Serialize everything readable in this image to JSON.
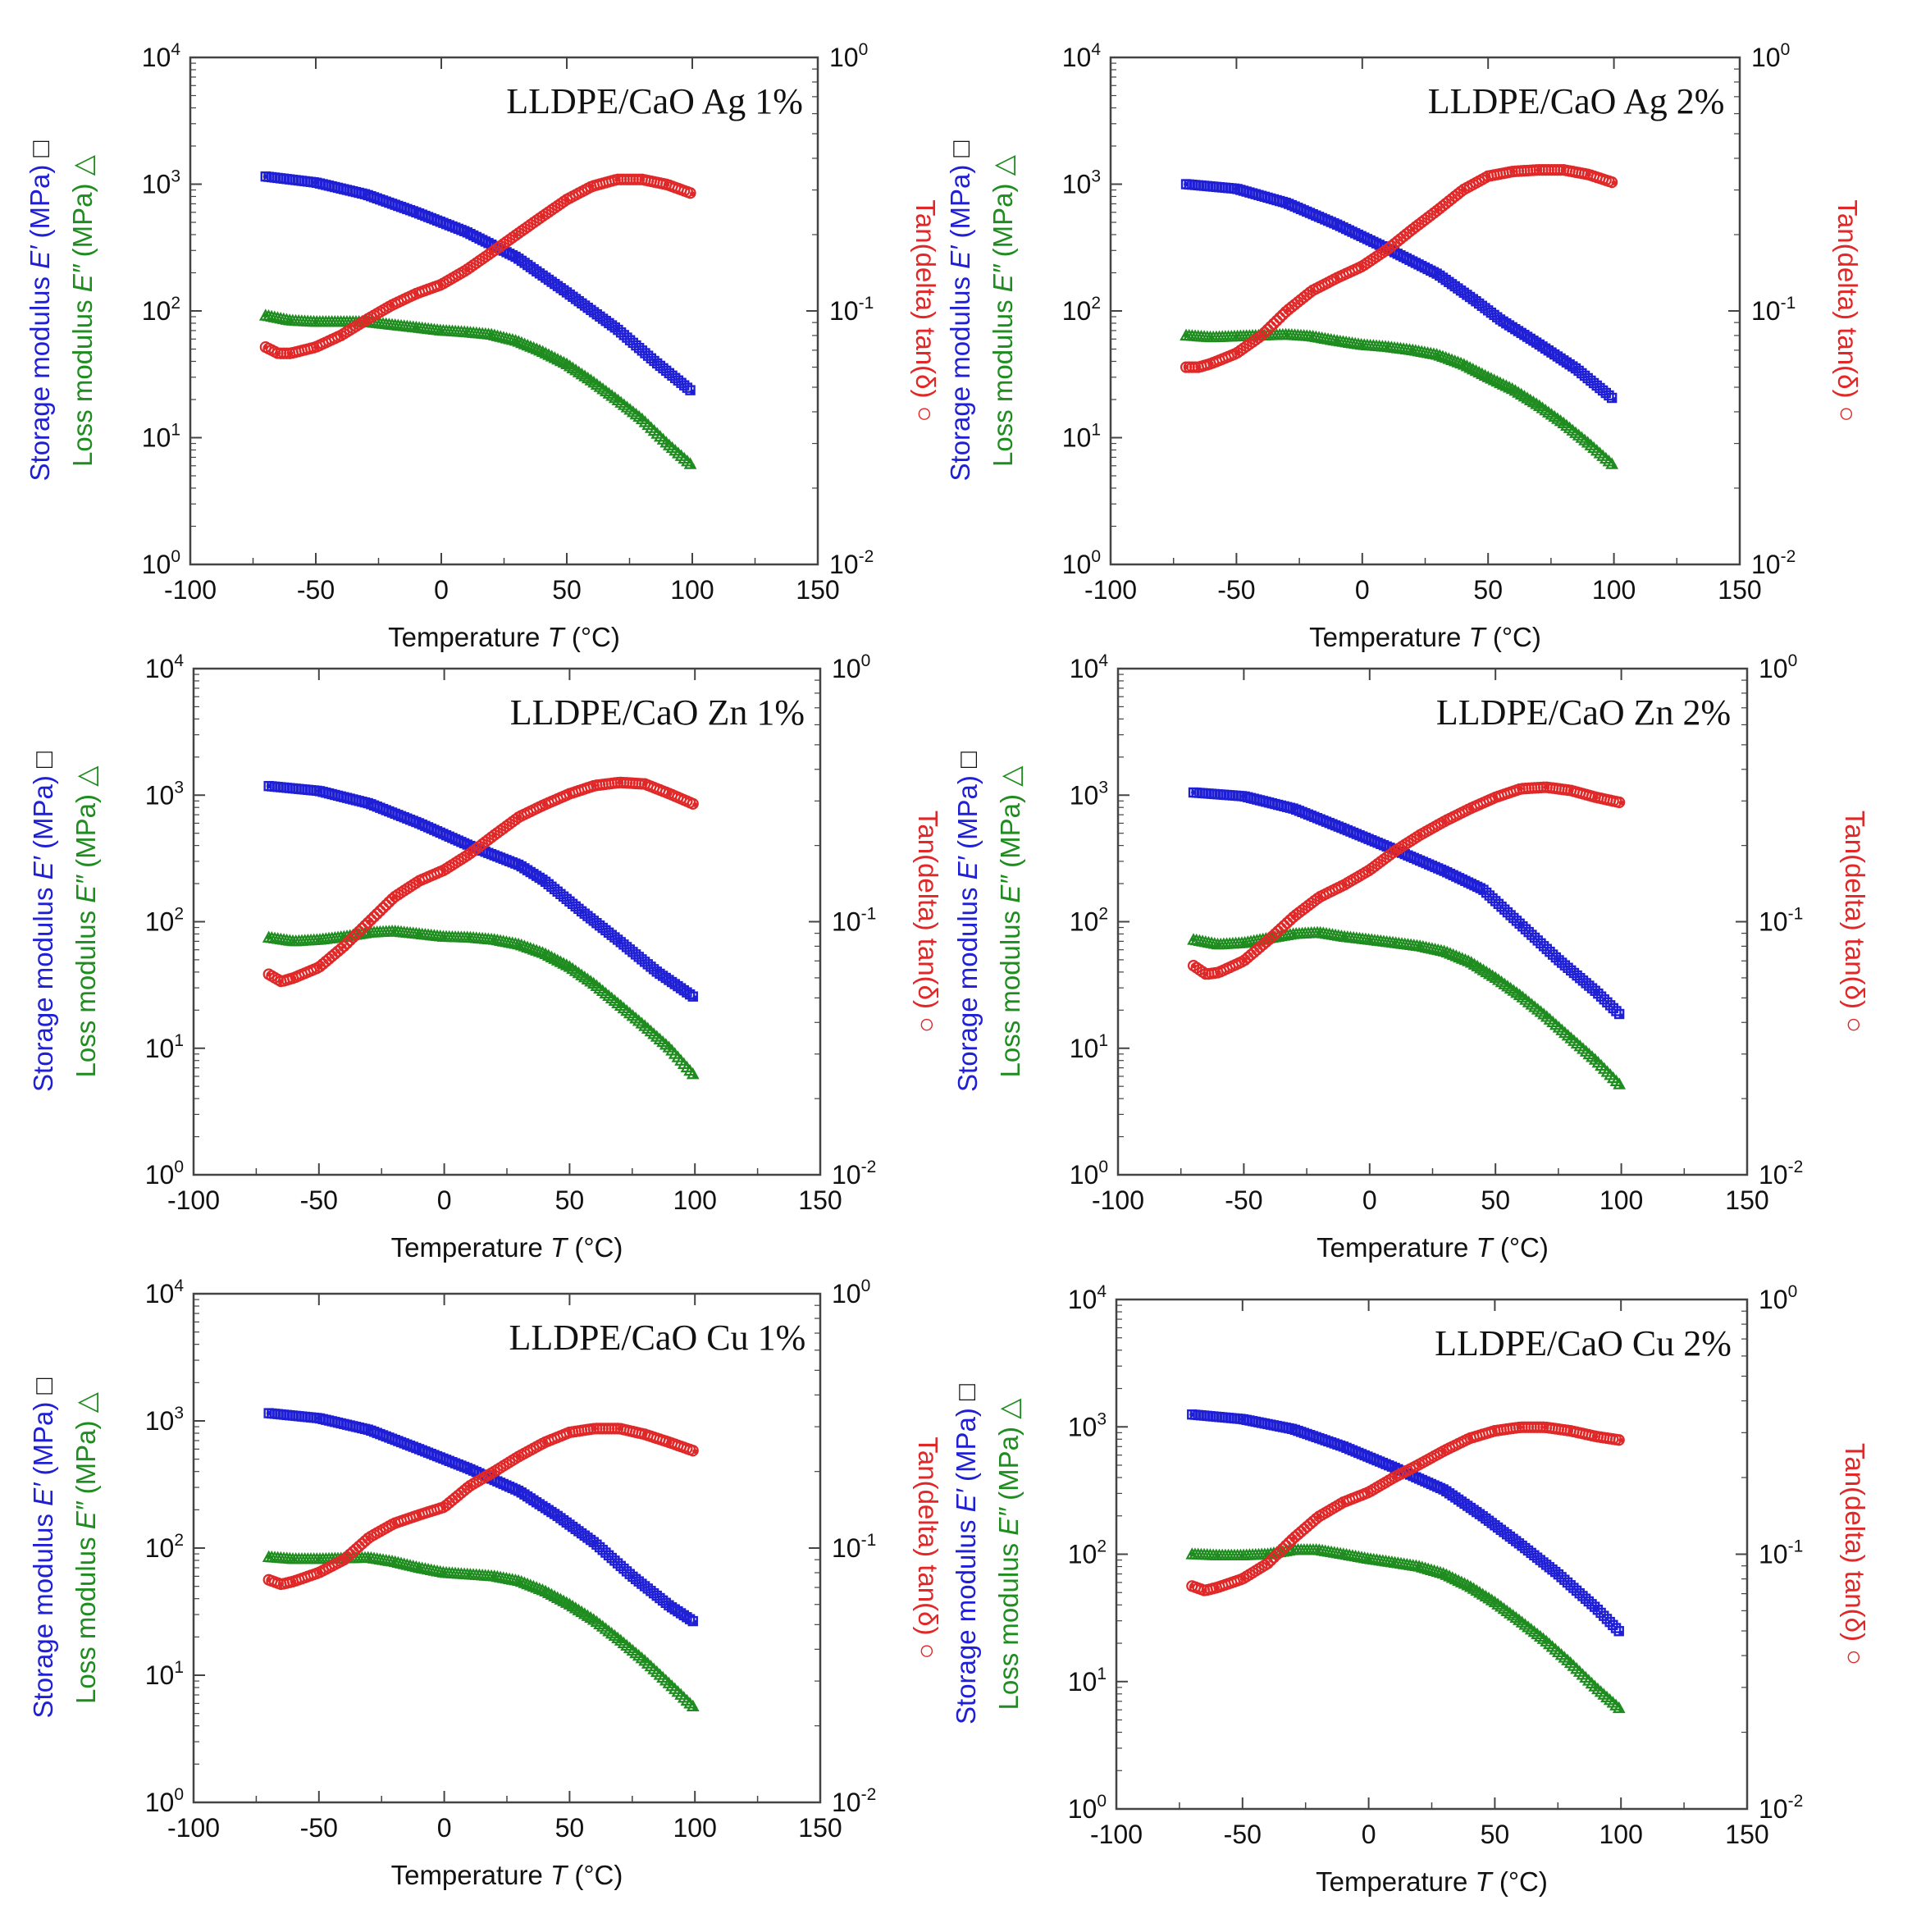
{
  "figure": {
    "colors": {
      "storage": "#1f1fd6",
      "loss": "#1e8c1e",
      "tan": "#e02828",
      "axis": "#444444",
      "text": "#111111"
    },
    "labels": {
      "xlabel_prefix": "Temperature ",
      "xlabel_var": "T",
      "xlabel_unit": " (°C)",
      "storage_prefix": "Storage modulus ",
      "storage_var": "E′",
      "storage_unit": " (MPa)",
      "storage_marker": "□",
      "loss_prefix": "Loss modulus ",
      "loss_var": "E″",
      "loss_unit": " (MPa)",
      "loss_marker": "△",
      "tan_text": "Tan(delta) tan(δ)",
      "tan_marker": "○",
      "ten": "10"
    }
  },
  "chart_data": [
    {
      "type": "line",
      "title": "LLDPE/CaO Ag 1%",
      "xlabel": "Temperature T (°C)",
      "ylabel_left": "Storage modulus E′ (MPa) □ / Loss modulus E″ (MPa) △",
      "ylabel_right": "Tan(delta) tan(δ) ○",
      "xlim": [
        -100,
        150
      ],
      "xticks": [
        -100,
        -50,
        0,
        50,
        100,
        150
      ],
      "ylim_left": [
        1,
        10000
      ],
      "yticks_left_exp": [
        0,
        1,
        2,
        3,
        4
      ],
      "ylim_right": [
        0.01,
        1
      ],
      "yticks_right_exp": [
        -2,
        -1,
        0
      ],
      "series": [
        {
          "name": "Storage modulus E′",
          "axis": "left",
          "x": [
            -70,
            -50,
            -30,
            -10,
            10,
            30,
            50,
            70,
            85,
            100
          ],
          "y": [
            1150,
            1030,
            830,
            600,
            420,
            265,
            140,
            72,
            40,
            23
          ]
        },
        {
          "name": "Loss modulus E″",
          "axis": "left",
          "x": [
            -70,
            -60,
            -50,
            -30,
            -10,
            0,
            10,
            20,
            30,
            40,
            50,
            60,
            70,
            80,
            90,
            100
          ],
          "y": [
            92,
            84,
            82,
            82,
            74,
            70,
            68,
            65,
            58,
            48,
            38,
            28,
            20,
            14,
            9,
            6
          ]
        },
        {
          "name": "tan δ",
          "axis": "right",
          "x": [
            -70,
            -65,
            -60,
            -50,
            -40,
            -30,
            -20,
            -10,
            0,
            10,
            20,
            30,
            40,
            50,
            60,
            70,
            80,
            90,
            100
          ],
          "y": [
            0.072,
            0.068,
            0.068,
            0.072,
            0.08,
            0.092,
            0.105,
            0.117,
            0.127,
            0.145,
            0.17,
            0.2,
            0.235,
            0.275,
            0.31,
            0.33,
            0.33,
            0.315,
            0.29
          ]
        }
      ]
    },
    {
      "type": "line",
      "title": "LLDPE/CaO Ag 2%",
      "xlabel": "Temperature T (°C)",
      "ylabel_left": "Storage modulus E′ (MPa) □ / Loss modulus E″ (MPa) △",
      "ylabel_right": "Tan(delta) tan(δ) ○",
      "xlim": [
        -100,
        150
      ],
      "xticks": [
        -100,
        -50,
        0,
        50,
        100,
        150
      ],
      "ylim_left": [
        1,
        10000
      ],
      "yticks_left_exp": [
        0,
        1,
        2,
        3,
        4
      ],
      "ylim_right": [
        0.01,
        1
      ],
      "yticks_right_exp": [
        -2,
        -1,
        0
      ],
      "series": [
        {
          "name": "Storage modulus E′",
          "axis": "left",
          "x": [
            -70,
            -50,
            -30,
            -10,
            10,
            30,
            45,
            55,
            70,
            85,
            100
          ],
          "y": [
            1000,
            920,
            710,
            480,
            310,
            195,
            120,
            85,
            55,
            35,
            20
          ]
        },
        {
          "name": "Loss modulus E″",
          "axis": "left",
          "x": [
            -70,
            -60,
            -50,
            -40,
            -30,
            -20,
            -10,
            0,
            10,
            20,
            30,
            40,
            50,
            60,
            70,
            80,
            90,
            100
          ],
          "y": [
            64,
            62,
            63,
            64,
            65,
            63,
            58,
            54,
            52,
            49,
            45,
            38,
            30,
            24,
            18,
            13,
            9,
            6
          ]
        },
        {
          "name": "tan δ",
          "axis": "right",
          "x": [
            -70,
            -65,
            -60,
            -50,
            -40,
            -30,
            -20,
            -10,
            0,
            10,
            20,
            30,
            40,
            50,
            60,
            70,
            80,
            90,
            100
          ],
          "y": [
            0.06,
            0.06,
            0.062,
            0.068,
            0.08,
            0.1,
            0.12,
            0.135,
            0.15,
            0.175,
            0.21,
            0.25,
            0.3,
            0.34,
            0.355,
            0.36,
            0.36,
            0.345,
            0.32
          ]
        }
      ]
    },
    {
      "type": "line",
      "title": "LLDPE/CaO Zn 1%",
      "xlabel": "Temperature T (°C)",
      "ylabel_left": "Storage modulus E′ (MPa) □ / Loss modulus E″ (MPa) △",
      "ylabel_right": "Tan(delta) tan(δ) ○",
      "xlim": [
        -100,
        150
      ],
      "xticks": [
        -100,
        -50,
        0,
        50,
        100,
        150
      ],
      "ylim_left": [
        1,
        10000
      ],
      "yticks_left_exp": [
        0,
        1,
        2,
        3,
        4
      ],
      "ylim_right": [
        0.01,
        1
      ],
      "yticks_right_exp": [
        -2,
        -1,
        0
      ],
      "series": [
        {
          "name": "Storage modulus E′",
          "axis": "left",
          "x": [
            -70,
            -50,
            -30,
            -10,
            10,
            30,
            40,
            55,
            70,
            85,
            100
          ],
          "y": [
            1180,
            1080,
            860,
            600,
            400,
            280,
            210,
            120,
            70,
            40,
            25
          ]
        },
        {
          "name": "Loss modulus E″",
          "axis": "left",
          "x": [
            -70,
            -60,
            -50,
            -40,
            -30,
            -20,
            -10,
            0,
            10,
            20,
            30,
            40,
            50,
            60,
            70,
            80,
            90,
            100
          ],
          "y": [
            75,
            70,
            72,
            76,
            82,
            84,
            80,
            76,
            75,
            72,
            66,
            56,
            44,
            32,
            22,
            15,
            10,
            6
          ]
        },
        {
          "name": "tan δ",
          "axis": "right",
          "x": [
            -70,
            -65,
            -60,
            -50,
            -40,
            -30,
            -20,
            -10,
            0,
            10,
            20,
            30,
            40,
            50,
            60,
            70,
            80,
            90,
            100
          ],
          "y": [
            0.062,
            0.058,
            0.06,
            0.066,
            0.08,
            0.1,
            0.125,
            0.145,
            0.16,
            0.185,
            0.22,
            0.26,
            0.29,
            0.32,
            0.345,
            0.355,
            0.35,
            0.32,
            0.29
          ]
        }
      ]
    },
    {
      "type": "line",
      "title": "LLDPE/CaO Zn 2%",
      "xlabel": "Temperature T (°C)",
      "ylabel_left": "Storage modulus E′ (MPa) □ / Loss modulus E″ (MPa) △",
      "ylabel_right": "Tan(delta) tan(δ) ○",
      "xlim": [
        -100,
        150
      ],
      "xticks": [
        -100,
        -50,
        0,
        50,
        100,
        150
      ],
      "ylim_left": [
        1,
        10000
      ],
      "yticks_left_exp": [
        0,
        1,
        2,
        3,
        4
      ],
      "ylim_right": [
        0.01,
        1
      ],
      "yticks_right_exp": [
        -2,
        -1,
        0
      ],
      "series": [
        {
          "name": "Storage modulus E′",
          "axis": "left",
          "x": [
            -70,
            -50,
            -30,
            -10,
            10,
            30,
            45,
            60,
            75,
            90,
            100
          ],
          "y": [
            1050,
            980,
            780,
            540,
            370,
            250,
            180,
            95,
            50,
            28,
            18
          ]
        },
        {
          "name": "Loss modulus E″",
          "axis": "left",
          "x": [
            -70,
            -60,
            -50,
            -40,
            -30,
            -20,
            -10,
            0,
            10,
            20,
            30,
            40,
            50,
            60,
            70,
            80,
            90,
            100
          ],
          "y": [
            72,
            66,
            68,
            74,
            80,
            82,
            76,
            72,
            68,
            64,
            58,
            48,
            36,
            26,
            18,
            12,
            8,
            5
          ]
        },
        {
          "name": "tan δ",
          "axis": "right",
          "x": [
            -70,
            -65,
            -60,
            -50,
            -40,
            -30,
            -20,
            -10,
            0,
            10,
            20,
            30,
            40,
            50,
            60,
            70,
            80,
            90,
            100
          ],
          "y": [
            0.067,
            0.062,
            0.063,
            0.07,
            0.085,
            0.105,
            0.125,
            0.14,
            0.16,
            0.19,
            0.22,
            0.25,
            0.28,
            0.31,
            0.335,
            0.34,
            0.33,
            0.31,
            0.295
          ]
        }
      ]
    },
    {
      "type": "line",
      "title": "LLDPE/CaO Cu 1%",
      "xlabel": "Temperature T (°C)",
      "ylabel_left": "Storage modulus E′ (MPa) □ / Loss modulus E″ (MPa) △",
      "ylabel_right": "Tan(delta) tan(δ) ○",
      "xlim": [
        -100,
        150
      ],
      "xticks": [
        -100,
        -50,
        0,
        50,
        100,
        150
      ],
      "ylim_left": [
        1,
        10000
      ],
      "yticks_left_exp": [
        0,
        1,
        2,
        3,
        4
      ],
      "ylim_right": [
        0.01,
        1
      ],
      "yticks_right_exp": [
        -2,
        -1,
        0
      ],
      "series": [
        {
          "name": "Storage modulus E′",
          "axis": "left",
          "x": [
            -70,
            -50,
            -30,
            -10,
            10,
            30,
            45,
            60,
            75,
            90,
            100
          ],
          "y": [
            1150,
            1050,
            850,
            600,
            420,
            280,
            180,
            110,
            60,
            35,
            26
          ]
        },
        {
          "name": "Loss modulus E″",
          "axis": "left",
          "x": [
            -70,
            -60,
            -50,
            -40,
            -30,
            -20,
            -10,
            0,
            10,
            20,
            30,
            40,
            50,
            60,
            70,
            80,
            90,
            100
          ],
          "y": [
            85,
            82,
            82,
            83,
            84,
            78,
            70,
            64,
            62,
            60,
            55,
            46,
            36,
            27,
            19,
            13,
            8.5,
            5.5
          ]
        },
        {
          "name": "tan δ",
          "axis": "right",
          "x": [
            -70,
            -65,
            -60,
            -50,
            -40,
            -30,
            -20,
            -10,
            0,
            10,
            20,
            30,
            40,
            50,
            60,
            70,
            80,
            90,
            100
          ],
          "y": [
            0.075,
            0.072,
            0.074,
            0.08,
            0.09,
            0.11,
            0.125,
            0.135,
            0.145,
            0.175,
            0.2,
            0.23,
            0.26,
            0.285,
            0.295,
            0.295,
            0.28,
            0.26,
            0.24
          ]
        }
      ]
    },
    {
      "type": "line",
      "title": "LLDPE/CaO Cu 2%",
      "xlabel": "Temperature T (°C)",
      "ylabel_left": "Storage modulus E′ (MPa) □ / Loss modulus E″ (MPa) △",
      "ylabel_right": "Tan(delta) tan(δ) ○",
      "xlim": [
        -100,
        150
      ],
      "xticks": [
        -100,
        -50,
        0,
        50,
        100,
        150
      ],
      "ylim_left": [
        1,
        10000
      ],
      "yticks_left_exp": [
        0,
        1,
        2,
        3,
        4
      ],
      "ylim_right": [
        0.01,
        1
      ],
      "yticks_right_exp": [
        -2,
        -1,
        0
      ],
      "series": [
        {
          "name": "Storage modulus E′",
          "axis": "left",
          "x": [
            -70,
            -50,
            -30,
            -10,
            10,
            30,
            45,
            60,
            75,
            90,
            100
          ],
          "y": [
            1250,
            1150,
            960,
            700,
            480,
            320,
            200,
            120,
            70,
            38,
            24
          ]
        },
        {
          "name": "Loss modulus E″",
          "axis": "left",
          "x": [
            -70,
            -60,
            -50,
            -40,
            -30,
            -20,
            -10,
            0,
            10,
            20,
            30,
            40,
            50,
            60,
            70,
            80,
            90,
            100
          ],
          "y": [
            100,
            98,
            98,
            100,
            108,
            108,
            100,
            92,
            86,
            80,
            70,
            56,
            42,
            30,
            21,
            14,
            9,
            6
          ]
        },
        {
          "name": "tan δ",
          "axis": "right",
          "x": [
            -70,
            -65,
            -60,
            -50,
            -40,
            -30,
            -20,
            -10,
            0,
            10,
            20,
            30,
            40,
            50,
            60,
            70,
            80,
            90,
            100
          ],
          "y": [
            0.075,
            0.072,
            0.074,
            0.08,
            0.092,
            0.115,
            0.14,
            0.16,
            0.175,
            0.2,
            0.225,
            0.255,
            0.285,
            0.305,
            0.315,
            0.315,
            0.305,
            0.29,
            0.28
          ]
        }
      ]
    }
  ]
}
